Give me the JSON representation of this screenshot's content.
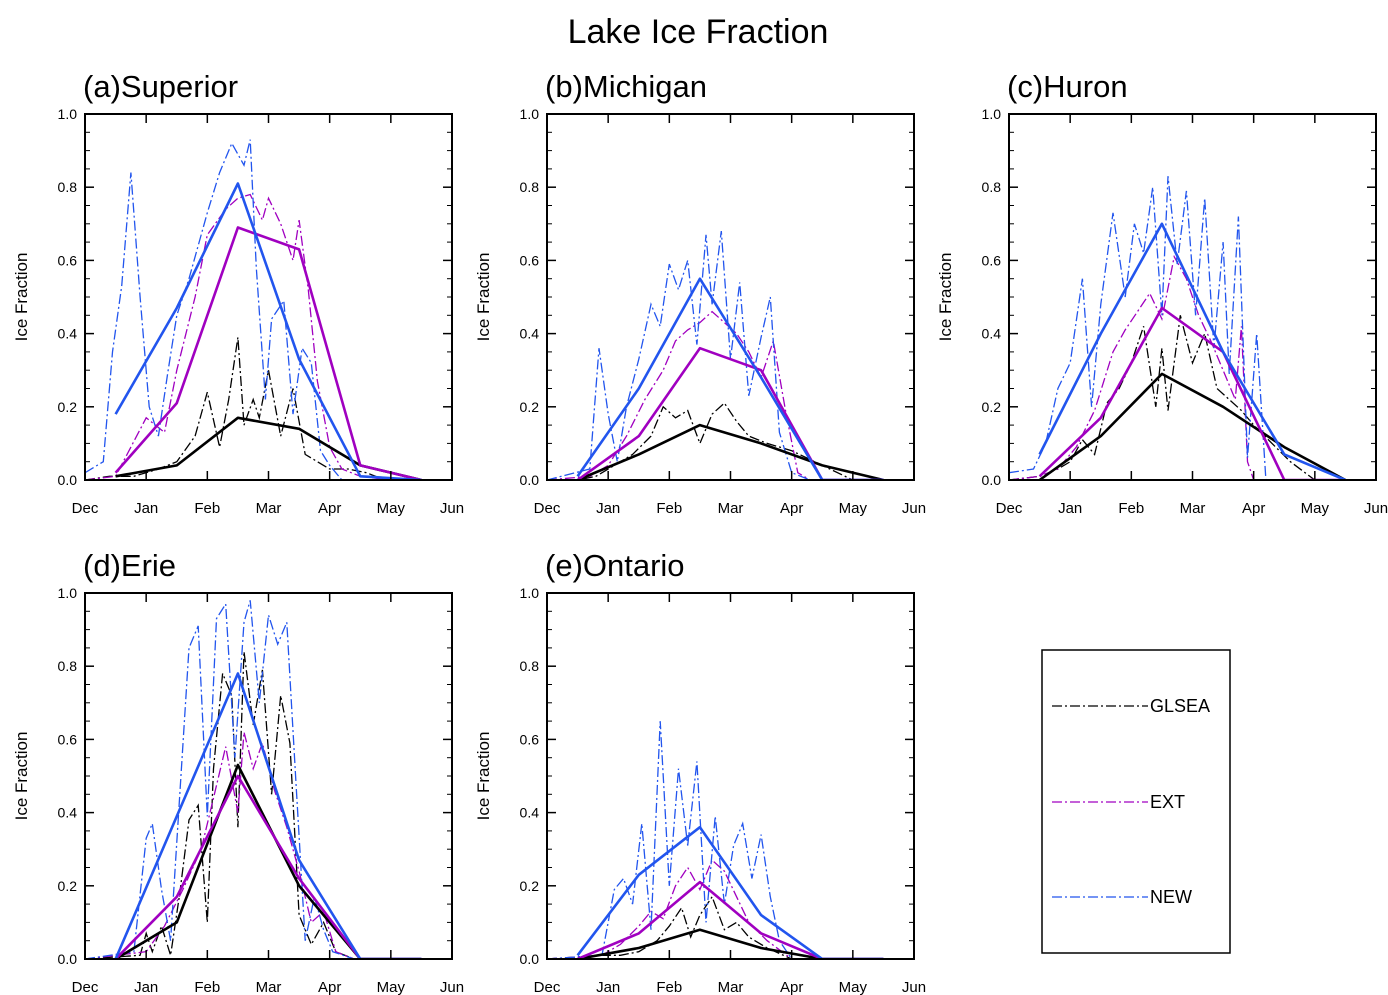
{
  "title": "Lake Ice Fraction",
  "legend": {
    "placement": "bottom-right",
    "entries": [
      {
        "label": "GLSEA",
        "color": "#000000",
        "style": "dash-dot"
      },
      {
        "label": "EXT",
        "color": "#a000c0",
        "style": "dash-dot"
      },
      {
        "label": "NEW",
        "color": "#2255ee",
        "style": "dash-dot"
      }
    ]
  },
  "colors": {
    "GLSEA": "#000000",
    "EXT": "#a000c0",
    "NEW": "#2255ee"
  },
  "chart_data": [
    {
      "type": "line",
      "title": "(a)Superior",
      "ylabel": "Ice Fraction",
      "xlabel": "",
      "xticks": [
        "Dec",
        "Jan",
        "Feb",
        "Mar",
        "Apr",
        "May",
        "Jun"
      ],
      "ylim": [
        0,
        1
      ],
      "yticks": [
        "0.0",
        "0.2",
        "0.4",
        "0.6",
        "0.8",
        "1.0"
      ],
      "grid": false,
      "monthly_x": [
        0.5,
        1.5,
        2.5,
        3.5,
        4.5,
        5.5
      ],
      "series": [
        {
          "name": "GLSEA",
          "kind": "monthly",
          "values": [
            0.01,
            0.04,
            0.17,
            0.14,
            0.04,
            0.0
          ]
        },
        {
          "name": "EXT",
          "kind": "monthly",
          "values": [
            0.02,
            0.21,
            0.69,
            0.63,
            0.04,
            0.0
          ]
        },
        {
          "name": "NEW",
          "kind": "monthly",
          "values": [
            0.18,
            0.47,
            0.81,
            0.33,
            0.01,
            0.0
          ]
        },
        {
          "name": "GLSEA",
          "kind": "daily",
          "x": [
            0,
            0.4,
            0.8,
            1.2,
            1.5,
            1.8,
            2.0,
            2.2,
            2.35,
            2.5,
            2.6,
            2.75,
            2.85,
            3.0,
            3.2,
            3.4,
            3.6,
            3.8,
            4.0,
            4.3,
            4.6,
            4.9
          ],
          "y": [
            0.0,
            0.01,
            0.01,
            0.03,
            0.05,
            0.12,
            0.24,
            0.09,
            0.22,
            0.39,
            0.15,
            0.22,
            0.17,
            0.3,
            0.12,
            0.25,
            0.07,
            0.05,
            0.03,
            0.03,
            0.02,
            0.0
          ]
        },
        {
          "name": "EXT",
          "kind": "daily",
          "x": [
            0,
            0.5,
            1.0,
            1.3,
            1.5,
            1.8,
            2.0,
            2.3,
            2.5,
            2.7,
            2.9,
            3.0,
            3.2,
            3.4,
            3.5,
            3.65,
            3.8,
            4.0,
            4.2,
            4.5,
            5.0
          ],
          "y": [
            0.0,
            0.01,
            0.17,
            0.13,
            0.3,
            0.5,
            0.67,
            0.74,
            0.77,
            0.78,
            0.71,
            0.77,
            0.7,
            0.6,
            0.71,
            0.52,
            0.27,
            0.09,
            0.03,
            0.01,
            0.0
          ]
        },
        {
          "name": "NEW",
          "kind": "daily",
          "x": [
            0,
            0.3,
            0.45,
            0.6,
            0.75,
            0.9,
            1.05,
            1.2,
            1.35,
            1.5,
            1.7,
            2.0,
            2.2,
            2.4,
            2.6,
            2.7,
            2.8,
            2.95,
            3.05,
            3.25,
            3.4,
            3.55,
            3.7,
            3.85,
            4.0,
            4.2
          ],
          "y": [
            0.02,
            0.05,
            0.35,
            0.53,
            0.84,
            0.5,
            0.2,
            0.12,
            0.29,
            0.45,
            0.55,
            0.73,
            0.84,
            0.92,
            0.86,
            0.93,
            0.58,
            0.22,
            0.44,
            0.49,
            0.18,
            0.36,
            0.32,
            0.08,
            0.04,
            0.0
          ]
        }
      ]
    },
    {
      "type": "line",
      "title": "(b)Michigan",
      "ylabel": "Ice Fraction",
      "xlabel": "",
      "xticks": [
        "Dec",
        "Jan",
        "Feb",
        "Mar",
        "Apr",
        "May",
        "Jun"
      ],
      "ylim": [
        0,
        1
      ],
      "yticks": [
        "0.0",
        "0.2",
        "0.4",
        "0.6",
        "0.8",
        "1.0"
      ],
      "grid": false,
      "monthly_x": [
        0.5,
        1.5,
        2.5,
        3.5,
        4.5,
        5.5
      ],
      "series": [
        {
          "name": "GLSEA",
          "kind": "monthly",
          "values": [
            0.0,
            0.07,
            0.15,
            0.1,
            0.04,
            0.0
          ]
        },
        {
          "name": "EXT",
          "kind": "monthly",
          "values": [
            0.0,
            0.12,
            0.36,
            0.3,
            0.0,
            0.0
          ]
        },
        {
          "name": "NEW",
          "kind": "monthly",
          "values": [
            0.01,
            0.25,
            0.55,
            0.28,
            0.0,
            0.0
          ]
        },
        {
          "name": "GLSEA",
          "kind": "daily",
          "x": [
            0,
            0.5,
            0.8,
            1.1,
            1.4,
            1.7,
            1.9,
            2.1,
            2.3,
            2.5,
            2.7,
            2.9,
            3.1,
            3.3,
            3.6,
            4.0,
            4.5,
            5.0
          ],
          "y": [
            0.0,
            0.0,
            0.01,
            0.04,
            0.07,
            0.12,
            0.2,
            0.17,
            0.19,
            0.1,
            0.18,
            0.21,
            0.16,
            0.12,
            0.1,
            0.08,
            0.04,
            0.0
          ]
        },
        {
          "name": "EXT",
          "kind": "daily",
          "x": [
            0,
            0.7,
            1.0,
            1.3,
            1.6,
            1.9,
            2.1,
            2.3,
            2.5,
            2.7,
            2.9,
            3.1,
            3.3,
            3.5,
            3.7,
            3.9,
            4.1,
            4.3
          ],
          "y": [
            0.0,
            0.01,
            0.04,
            0.12,
            0.22,
            0.3,
            0.38,
            0.41,
            0.43,
            0.46,
            0.43,
            0.4,
            0.35,
            0.28,
            0.38,
            0.19,
            0.02,
            0.0
          ]
        },
        {
          "name": "NEW",
          "kind": "daily",
          "x": [
            0,
            0.7,
            0.85,
            1.0,
            1.15,
            1.3,
            1.5,
            1.7,
            1.85,
            2.0,
            2.15,
            2.3,
            2.45,
            2.6,
            2.7,
            2.85,
            3.0,
            3.15,
            3.3,
            3.5,
            3.65,
            3.8,
            4.0,
            4.3
          ],
          "y": [
            0.0,
            0.03,
            0.36,
            0.18,
            0.05,
            0.2,
            0.33,
            0.48,
            0.42,
            0.59,
            0.52,
            0.6,
            0.37,
            0.67,
            0.48,
            0.68,
            0.33,
            0.54,
            0.23,
            0.39,
            0.5,
            0.13,
            0.02,
            0.0
          ]
        }
      ]
    },
    {
      "type": "line",
      "title": "(c)Huron",
      "ylabel": "Ice Fraction",
      "xlabel": "",
      "xticks": [
        "Dec",
        "Jan",
        "Feb",
        "Mar",
        "Apr",
        "May",
        "Jun"
      ],
      "ylim": [
        0,
        1
      ],
      "yticks": [
        "0.0",
        "0.2",
        "0.4",
        "0.6",
        "0.8",
        "1.0"
      ],
      "grid": false,
      "monthly_x": [
        0.5,
        1.5,
        2.5,
        3.5,
        4.5,
        5.5
      ],
      "series": [
        {
          "name": "GLSEA",
          "kind": "monthly",
          "values": [
            0.0,
            0.12,
            0.29,
            0.2,
            0.09,
            0.0
          ]
        },
        {
          "name": "EXT",
          "kind": "monthly",
          "values": [
            0.01,
            0.17,
            0.47,
            0.35,
            0.0,
            0.0
          ]
        },
        {
          "name": "NEW",
          "kind": "monthly",
          "values": [
            0.07,
            0.4,
            0.7,
            0.35,
            0.07,
            0.0
          ]
        },
        {
          "name": "GLSEA",
          "kind": "daily",
          "x": [
            0,
            0.5,
            0.8,
            1.0,
            1.2,
            1.4,
            1.6,
            1.8,
            2.0,
            2.2,
            2.4,
            2.5,
            2.6,
            2.8,
            3.0,
            3.2,
            3.4,
            3.6,
            3.8,
            4.0,
            4.3,
            4.6,
            5.0
          ],
          "y": [
            0.0,
            0.01,
            0.03,
            0.05,
            0.11,
            0.07,
            0.21,
            0.25,
            0.32,
            0.42,
            0.2,
            0.36,
            0.19,
            0.45,
            0.32,
            0.4,
            0.25,
            0.22,
            0.19,
            0.15,
            0.1,
            0.05,
            0.0
          ]
        },
        {
          "name": "EXT",
          "kind": "daily",
          "x": [
            0,
            0.5,
            0.8,
            1.1,
            1.4,
            1.7,
            1.9,
            2.1,
            2.3,
            2.5,
            2.7,
            2.9,
            3.1,
            3.3,
            3.5,
            3.7,
            3.8,
            3.9,
            4.0
          ],
          "y": [
            0.0,
            0.01,
            0.03,
            0.09,
            0.19,
            0.35,
            0.41,
            0.46,
            0.51,
            0.44,
            0.61,
            0.55,
            0.45,
            0.38,
            0.3,
            0.22,
            0.42,
            0.05,
            0.0
          ]
        },
        {
          "name": "NEW",
          "kind": "daily",
          "x": [
            0,
            0.4,
            0.6,
            0.8,
            1.0,
            1.2,
            1.35,
            1.5,
            1.7,
            1.9,
            2.05,
            2.2,
            2.35,
            2.5,
            2.6,
            2.75,
            2.9,
            3.05,
            3.2,
            3.35,
            3.5,
            3.6,
            3.75,
            3.9,
            4.05,
            4.2
          ],
          "y": [
            0.02,
            0.03,
            0.1,
            0.25,
            0.32,
            0.55,
            0.2,
            0.48,
            0.73,
            0.5,
            0.7,
            0.62,
            0.8,
            0.45,
            0.83,
            0.59,
            0.79,
            0.45,
            0.77,
            0.36,
            0.65,
            0.29,
            0.72,
            0.06,
            0.4,
            0.0
          ]
        }
      ]
    },
    {
      "type": "line",
      "title": "(d)Erie",
      "ylabel": "Ice Fraction",
      "xlabel": "",
      "xticks": [
        "Dec",
        "Jan",
        "Feb",
        "Mar",
        "Apr",
        "May",
        "Jun"
      ],
      "ylim": [
        0,
        1
      ],
      "yticks": [
        "0.0",
        "0.2",
        "0.4",
        "0.6",
        "0.8",
        "1.0"
      ],
      "grid": false,
      "monthly_x": [
        0.5,
        1.5,
        2.5,
        3.5,
        4.5,
        5.5
      ],
      "series": [
        {
          "name": "GLSEA",
          "kind": "monthly",
          "values": [
            0.0,
            0.1,
            0.53,
            0.2,
            0.0,
            0.0
          ]
        },
        {
          "name": "EXT",
          "kind": "monthly",
          "values": [
            0.0,
            0.17,
            0.5,
            0.22,
            0.0,
            0.0
          ]
        },
        {
          "name": "NEW",
          "kind": "monthly",
          "values": [
            0.0,
            0.39,
            0.78,
            0.27,
            0.0,
            0.0
          ]
        },
        {
          "name": "GLSEA",
          "kind": "daily",
          "x": [
            0,
            0.9,
            1.0,
            1.1,
            1.25,
            1.4,
            1.55,
            1.7,
            1.85,
            2.0,
            2.1,
            2.25,
            2.4,
            2.5,
            2.6,
            2.75,
            2.9,
            3.05,
            3.2,
            3.35,
            3.5,
            3.7,
            3.9,
            4.1,
            4.4
          ],
          "y": [
            0.0,
            0.01,
            0.07,
            0.02,
            0.09,
            0.01,
            0.18,
            0.38,
            0.42,
            0.1,
            0.52,
            0.78,
            0.72,
            0.36,
            0.84,
            0.64,
            0.79,
            0.45,
            0.72,
            0.59,
            0.12,
            0.04,
            0.1,
            0.02,
            0.0
          ]
        },
        {
          "name": "EXT",
          "kind": "daily",
          "x": [
            0,
            1.0,
            1.3,
            1.6,
            1.9,
            2.1,
            2.3,
            2.5,
            2.6,
            2.75,
            2.9,
            3.1,
            3.3,
            3.5,
            3.7,
            3.9,
            4.1,
            4.4
          ],
          "y": [
            0.0,
            0.02,
            0.09,
            0.19,
            0.3,
            0.44,
            0.58,
            0.4,
            0.62,
            0.52,
            0.59,
            0.46,
            0.36,
            0.24,
            0.1,
            0.13,
            0.02,
            0.0
          ]
        },
        {
          "name": "NEW",
          "kind": "daily",
          "x": [
            0,
            0.8,
            1.0,
            1.1,
            1.25,
            1.4,
            1.55,
            1.7,
            1.85,
            2.0,
            2.15,
            2.3,
            2.45,
            2.6,
            2.7,
            2.85,
            3.0,
            3.15,
            3.3,
            3.45,
            3.6,
            3.75,
            3.9,
            4.05,
            4.4
          ],
          "y": [
            0.0,
            0.02,
            0.33,
            0.37,
            0.19,
            0.05,
            0.45,
            0.85,
            0.91,
            0.39,
            0.93,
            0.97,
            0.55,
            0.92,
            0.98,
            0.7,
            0.94,
            0.86,
            0.92,
            0.48,
            0.05,
            0.17,
            0.08,
            0.02,
            0.0
          ]
        }
      ]
    },
    {
      "type": "line",
      "title": "(e)Ontario",
      "ylabel": "Ice Fraction",
      "xlabel": "",
      "xticks": [
        "Dec",
        "Jan",
        "Feb",
        "Mar",
        "Apr",
        "May",
        "Jun"
      ],
      "ylim": [
        0,
        1
      ],
      "yticks": [
        "0.0",
        "0.2",
        "0.4",
        "0.6",
        "0.8",
        "1.0"
      ],
      "grid": false,
      "monthly_x": [
        0.5,
        1.5,
        2.5,
        3.5,
        4.5,
        5.5
      ],
      "series": [
        {
          "name": "GLSEA",
          "kind": "monthly",
          "values": [
            0.0,
            0.03,
            0.08,
            0.03,
            0.0,
            0.0
          ]
        },
        {
          "name": "EXT",
          "kind": "monthly",
          "values": [
            0.0,
            0.07,
            0.21,
            0.07,
            0.0,
            0.0
          ]
        },
        {
          "name": "NEW",
          "kind": "monthly",
          "values": [
            0.01,
            0.23,
            0.36,
            0.12,
            0.0,
            0.0
          ]
        },
        {
          "name": "GLSEA",
          "kind": "daily",
          "x": [
            0,
            0.9,
            1.2,
            1.5,
            1.8,
            2.0,
            2.2,
            2.35,
            2.5,
            2.7,
            2.9,
            3.1,
            3.3,
            3.6,
            4.0
          ],
          "y": [
            0.0,
            0.01,
            0.01,
            0.02,
            0.05,
            0.09,
            0.14,
            0.06,
            0.12,
            0.17,
            0.08,
            0.1,
            0.06,
            0.03,
            0.0
          ]
        },
        {
          "name": "EXT",
          "kind": "daily",
          "x": [
            0,
            0.9,
            1.2,
            1.5,
            1.7,
            1.9,
            2.1,
            2.3,
            2.5,
            2.7,
            2.9,
            3.1,
            3.3,
            3.6,
            4.0
          ],
          "y": [
            0.0,
            0.01,
            0.04,
            0.09,
            0.13,
            0.11,
            0.2,
            0.25,
            0.19,
            0.27,
            0.24,
            0.17,
            0.1,
            0.05,
            0.0
          ]
        },
        {
          "name": "NEW",
          "kind": "daily",
          "x": [
            0,
            0.9,
            1.1,
            1.25,
            1.4,
            1.55,
            1.7,
            1.85,
            2.0,
            2.15,
            2.3,
            2.45,
            2.6,
            2.75,
            2.9,
            3.05,
            3.2,
            3.35,
            3.5,
            3.65,
            3.8,
            4.0
          ],
          "y": [
            0.0,
            0.01,
            0.19,
            0.22,
            0.15,
            0.37,
            0.08,
            0.65,
            0.2,
            0.52,
            0.31,
            0.54,
            0.1,
            0.39,
            0.15,
            0.31,
            0.37,
            0.22,
            0.34,
            0.17,
            0.05,
            0.0
          ]
        }
      ]
    }
  ]
}
